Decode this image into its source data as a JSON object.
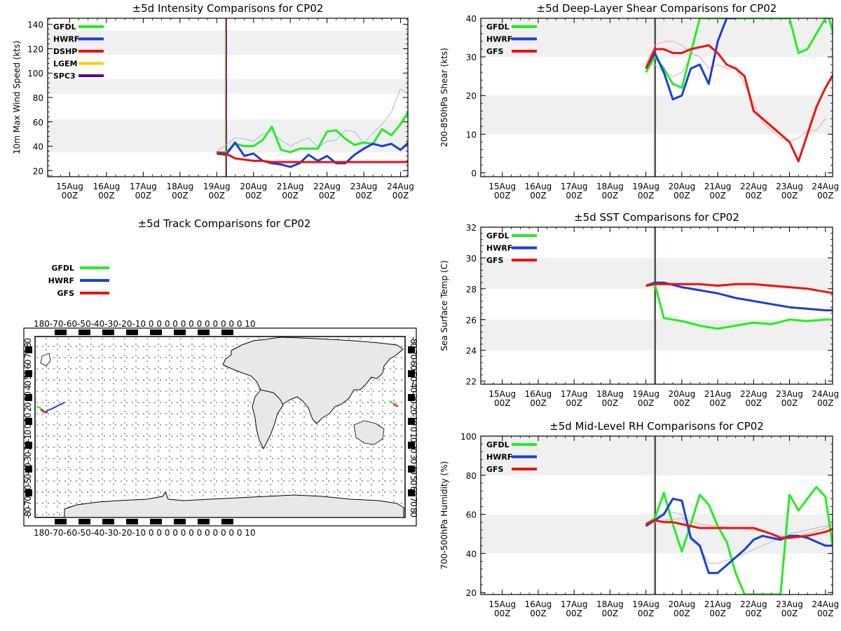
{
  "chart_data": [
    {
      "id": "intensity",
      "type": "line",
      "title": "±5d Intensity Comparisons for CP02",
      "ylabel": "10m Max Wind Speed (kts)",
      "xlabel": "",
      "x_tick_labels": [
        [
          "15Aug",
          "00Z"
        ],
        [
          "16Aug",
          "00Z"
        ],
        [
          "17Aug",
          "00Z"
        ],
        [
          "18Aug",
          "00Z"
        ],
        [
          "19Aug",
          "00Z"
        ],
        [
          "20Aug",
          "00Z"
        ],
        [
          "21Aug",
          "00Z"
        ],
        [
          "22Aug",
          "00Z"
        ],
        [
          "23Aug",
          "00Z"
        ],
        [
          "24Aug",
          "00Z"
        ]
      ],
      "xlim": [
        -4.6,
        5.2
      ],
      "ylim": [
        15,
        145
      ],
      "y_ticks": [
        20,
        40,
        60,
        80,
        100,
        120,
        140
      ],
      "bands": [
        [
          35,
          62
        ],
        [
          83,
          95
        ],
        [
          115,
          135
        ]
      ],
      "vline": 0.25,
      "legend": [
        "GFDL",
        "HWRF",
        "DSHP",
        "LGEM",
        "SPC3"
      ],
      "colors": {
        "GFDL": "#22ee22",
        "HWRF": "#1a3ed8",
        "DSHP": "#ee1111",
        "LGEM": "#ffcc00",
        "SPC3": "#660066",
        "faint": "#aab4ee"
      },
      "series": [
        {
          "name": "GFDL",
          "x": [
            0.0,
            0.25,
            0.5,
            0.75,
            1.0,
            1.25,
            1.5,
            1.75,
            2.0,
            2.25,
            2.5,
            2.75,
            3.0,
            3.25,
            3.5,
            3.75,
            4.0,
            4.25,
            4.5,
            4.75,
            5.0,
            5.25
          ],
          "values": [
            35,
            35,
            42,
            40,
            40,
            45,
            56,
            37,
            35,
            38,
            38,
            38,
            52,
            53,
            46,
            41,
            43,
            42,
            54,
            49,
            58,
            70
          ]
        },
        {
          "name": "HWRF",
          "x": [
            0.0,
            0.25,
            0.5,
            0.75,
            1.0,
            1.25,
            1.5,
            1.75,
            2.0,
            2.25,
            2.5,
            2.75,
            3.0,
            3.25,
            3.5,
            3.75,
            4.0,
            4.25,
            4.5,
            4.75,
            5.0,
            5.25
          ],
          "values": [
            34,
            33,
            43,
            32,
            34,
            28,
            26,
            25,
            23,
            26,
            33,
            28,
            32,
            26,
            26,
            33,
            38,
            42,
            40,
            42,
            37,
            44
          ]
        },
        {
          "name": "DSHP",
          "x": [
            0.0,
            0.25,
            0.5,
            0.75,
            1.0,
            1.25,
            1.5,
            1.75,
            2.0,
            2.5,
            3.0,
            3.5,
            4.0,
            4.5,
            5.0,
            5.25
          ],
          "values": [
            35,
            34,
            30,
            29,
            28,
            28,
            27,
            27,
            27,
            27,
            27,
            27,
            27,
            27,
            27,
            27
          ]
        },
        {
          "name": "faint",
          "x": [
            0.0,
            0.25,
            0.5,
            0.75,
            1.0,
            1.25,
            1.5,
            1.75,
            2.0,
            2.25,
            2.5,
            2.75,
            3.0,
            3.25,
            3.5,
            3.75,
            4.0,
            4.25,
            4.5,
            4.75,
            5.0,
            5.25
          ],
          "values": [
            36,
            41,
            47,
            46,
            44,
            50,
            52,
            45,
            40,
            44,
            47,
            39,
            44,
            45,
            53,
            52,
            42,
            51,
            58,
            68,
            87,
            82
          ]
        }
      ]
    },
    {
      "id": "shear",
      "type": "line",
      "title": "±5d Deep-Layer Shear Comparisons for CP02",
      "ylabel": "200-850hPa Shear (kts)",
      "xlabel": "",
      "x_tick_labels": [
        [
          "15Aug",
          "00Z"
        ],
        [
          "16Aug",
          "00Z"
        ],
        [
          "17Aug",
          "00Z"
        ],
        [
          "18Aug",
          "00Z"
        ],
        [
          "19Aug",
          "00Z"
        ],
        [
          "20Aug",
          "00Z"
        ],
        [
          "21Aug",
          "00Z"
        ],
        [
          "22Aug",
          "00Z"
        ],
        [
          "23Aug",
          "00Z"
        ],
        [
          "24Aug",
          "00Z"
        ]
      ],
      "xlim": [
        -4.6,
        5.2
      ],
      "ylim": [
        -1,
        40
      ],
      "y_ticks": [
        0,
        10,
        20,
        30,
        40
      ],
      "bands": [
        [
          10,
          20
        ],
        [
          30,
          40
        ]
      ],
      "vline": 0.25,
      "legend": [
        "GFDL",
        "HWRF",
        "GFS"
      ],
      "colors": {
        "GFDL": "#22ee22",
        "HWRF": "#1a3ed8",
        "GFS": "#ee1111",
        "faint": "#f0a0a0",
        "faint2": "#aab4ee"
      },
      "series": [
        {
          "name": "GFDL",
          "x": [
            0.0,
            0.25,
            0.5,
            0.75,
            1.0,
            1.25,
            1.5,
            4.0,
            4.25,
            4.5,
            4.75,
            5.0,
            5.1,
            5.25
          ],
          "values": [
            26,
            30,
            27,
            23,
            22,
            31,
            40,
            40,
            31,
            32,
            36,
            40,
            40,
            35
          ]
        },
        {
          "name": "HWRF",
          "x": [
            0.0,
            0.25,
            0.5,
            0.75,
            1.0,
            1.25,
            1.5,
            1.75,
            2.0,
            2.25,
            2.5
          ],
          "values": [
            27,
            31,
            26,
            19,
            20,
            27,
            28,
            23,
            34,
            40,
            40
          ]
        },
        {
          "name": "GFS",
          "x": [
            0.0,
            0.25,
            0.5,
            0.75,
            1.0,
            1.25,
            1.5,
            1.75,
            2.0,
            2.25,
            2.5,
            2.75,
            3.0,
            3.25,
            3.5,
            3.75,
            4.0,
            4.25,
            4.5,
            4.75,
            5.0,
            5.25
          ],
          "values": [
            27,
            32,
            32,
            31,
            31,
            32,
            32.5,
            33,
            31,
            28,
            27,
            25,
            16,
            14,
            12,
            10,
            8,
            3,
            10,
            17,
            22,
            26
          ]
        },
        {
          "name": "faint",
          "x": [
            0.0,
            0.25,
            0.5,
            0.75,
            1.0,
            1.25,
            1.5,
            1.75,
            2.0,
            2.25,
            2.5,
            2.75,
            3.0,
            3.25,
            3.5,
            3.75,
            4.0,
            4.25,
            4.5,
            4.75,
            5.0
          ],
          "values": [
            28,
            33,
            34,
            34,
            33,
            31,
            30,
            27,
            28,
            27,
            27,
            23,
            18,
            13,
            11,
            9,
            8,
            9,
            11,
            11,
            14
          ]
        },
        {
          "name": "faint2",
          "x": [
            0.0,
            0.25,
            0.5,
            0.75,
            1.0,
            1.25,
            1.5,
            1.75
          ],
          "values": [
            28,
            28,
            26,
            25,
            26,
            30,
            40,
            40
          ]
        }
      ]
    },
    {
      "id": "sst",
      "type": "line",
      "title": "±5d SST Comparisons for CP02",
      "ylabel": "Sea Surface Temp (C)",
      "xlabel": "",
      "x_tick_labels": [
        [
          "15Aug",
          "00Z"
        ],
        [
          "16Aug",
          "00Z"
        ],
        [
          "17Aug",
          "00Z"
        ],
        [
          "18Aug",
          "00Z"
        ],
        [
          "19Aug",
          "00Z"
        ],
        [
          "20Aug",
          "00Z"
        ],
        [
          "21Aug",
          "00Z"
        ],
        [
          "22Aug",
          "00Z"
        ],
        [
          "23Aug",
          "00Z"
        ],
        [
          "24Aug",
          "00Z"
        ]
      ],
      "xlim": [
        -4.6,
        5.2
      ],
      "ylim": [
        21.8,
        32
      ],
      "y_ticks": [
        22,
        24,
        26,
        28,
        30,
        32
      ],
      "bands": [
        [
          24,
          26
        ],
        [
          28,
          30
        ]
      ],
      "vline": 0.25,
      "legend": [
        "GFDL",
        "HWRF",
        "GFS"
      ],
      "colors": {
        "GFDL": "#22ee22",
        "HWRF": "#1a3ed8",
        "GFS": "#ee1111"
      },
      "series": [
        {
          "name": "GFDL",
          "x": [
            0.0,
            0.25,
            0.5,
            1.0,
            1.5,
            2.0,
            2.5,
            3.0,
            3.5,
            4.0,
            4.5,
            5.0,
            5.25
          ],
          "values": [
            28.2,
            28.3,
            26.1,
            25.9,
            25.6,
            25.4,
            25.6,
            25.8,
            25.7,
            26.0,
            25.9,
            26.0,
            26.0
          ]
        },
        {
          "name": "HWRF",
          "x": [
            0.0,
            0.25,
            0.5,
            1.0,
            1.5,
            2.0,
            2.5,
            3.0,
            3.5,
            4.0,
            4.5,
            5.0,
            5.25
          ],
          "values": [
            28.2,
            28.4,
            28.4,
            28.1,
            27.9,
            27.7,
            27.4,
            27.2,
            27.0,
            26.8,
            26.7,
            26.6,
            26.6
          ]
        },
        {
          "name": "GFS",
          "x": [
            0.0,
            0.25,
            0.5,
            1.0,
            1.5,
            2.0,
            2.5,
            3.0,
            3.5,
            4.0,
            4.5,
            5.0,
            5.25
          ],
          "values": [
            28.2,
            28.3,
            28.3,
            28.3,
            28.3,
            28.2,
            28.3,
            28.3,
            28.2,
            28.1,
            28.0,
            27.8,
            27.7
          ]
        }
      ]
    },
    {
      "id": "rh",
      "type": "line",
      "title": "±5d Mid-Level RH Comparisons for CP02",
      "ylabel": "700-500hPa Humidity (%)",
      "xlabel": "",
      "x_tick_labels": [
        [
          "15Aug",
          "00Z"
        ],
        [
          "16Aug",
          "00Z"
        ],
        [
          "17Aug",
          "00Z"
        ],
        [
          "18Aug",
          "00Z"
        ],
        [
          "19Aug",
          "00Z"
        ],
        [
          "20Aug",
          "00Z"
        ],
        [
          "21Aug",
          "00Z"
        ],
        [
          "22Aug",
          "00Z"
        ],
        [
          "23Aug",
          "00Z"
        ],
        [
          "24Aug",
          "00Z"
        ]
      ],
      "xlim": [
        -4.6,
        5.2
      ],
      "ylim": [
        19,
        100
      ],
      "y_ticks": [
        20,
        40,
        60,
        80,
        100
      ],
      "bands": [
        [
          40,
          60
        ],
        [
          80,
          100
        ]
      ],
      "vline": 0.25,
      "legend": [
        "GFDL",
        "HWRF",
        "GFS"
      ],
      "colors": {
        "GFDL": "#22ee22",
        "HWRF": "#1a3ed8",
        "GFS": "#ee1111",
        "faint": "#aab4ee",
        "faint2": "#f0a0a0"
      },
      "series": [
        {
          "name": "GFDL",
          "x": [
            0.0,
            0.25,
            0.5,
            0.75,
            1.0,
            1.25,
            1.5,
            1.75,
            2.0,
            2.25,
            2.5,
            2.75,
            3.0,
            3.2,
            3.75,
            4.0,
            4.25,
            4.5,
            4.75,
            5.0,
            5.25
          ],
          "values": [
            55,
            58,
            71,
            55,
            41,
            55,
            70,
            65,
            54,
            46,
            30,
            19,
            19,
            19,
            19,
            70,
            62,
            68,
            74,
            69,
            38
          ]
        },
        {
          "name": "HWRF",
          "x": [
            0.0,
            0.25,
            0.5,
            0.75,
            1.0,
            1.25,
            1.5,
            1.75,
            2.0,
            2.25,
            2.5,
            2.75,
            3.0,
            3.25,
            3.5,
            3.75,
            4.0,
            4.25,
            4.5,
            4.75,
            5.0,
            5.25
          ],
          "values": [
            54,
            57,
            60,
            68,
            67,
            48,
            44,
            30,
            30,
            34,
            38,
            42,
            47,
            49,
            48,
            47,
            49,
            49,
            48,
            46,
            44,
            44
          ]
        },
        {
          "name": "GFS",
          "x": [
            0.0,
            0.25,
            0.5,
            0.75,
            1.0,
            1.25,
            1.5,
            1.75,
            2.0,
            2.5,
            3.0,
            3.5,
            3.75,
            4.0,
            4.5,
            5.0,
            5.25
          ],
          "values": [
            55,
            57,
            56,
            56,
            55,
            54,
            53,
            53,
            53,
            53,
            53,
            50,
            48,
            48,
            49,
            51,
            53
          ]
        },
        {
          "name": "faint",
          "x": [
            0.0,
            0.25,
            0.5,
            0.75,
            1.0,
            1.25,
            1.5,
            1.75,
            2.0,
            2.5,
            3.0,
            3.5,
            3.75,
            4.0,
            4.5,
            5.0,
            5.25
          ],
          "values": [
            54,
            58,
            61,
            61,
            60,
            47,
            43,
            35,
            35,
            38,
            42,
            46,
            48,
            50,
            52,
            54,
            55
          ]
        },
        {
          "name": "faint2",
          "x": [
            0.0,
            0.5,
            1.0,
            1.5,
            2.0,
            2.5,
            3.0,
            3.5,
            4.0,
            4.5,
            5.0,
            5.25
          ],
          "values": [
            55,
            57,
            58,
            55,
            54,
            53,
            52,
            50,
            48,
            50,
            53,
            55
          ]
        }
      ]
    }
  ],
  "track": {
    "title": "±5d Track Comparisons for CP02",
    "legend": [
      "GFDL",
      "HWRF",
      "GFS"
    ],
    "colors": {
      "GFDL": "#22ee22",
      "HWRF": "#1a3ed8",
      "GFS": "#ee1111"
    },
    "top_axis_label": "180-70-60-50-40-30-20-10 0 0 0 0 0 0 0 0 0 0 0 0 10",
    "bottom_axis_label": "180-70-60-50-40-30-20-10 0 0 0 0 0 0 0 0 0 0 0 0 10",
    "left_axis_label": "-80-70-60-50-40-30-20-10 0 10 20 30 40 50 60 70 80",
    "right_axis_label": "-80-70-60-50-40-30-20-10 0 10 20 30 40 50 60 70 80"
  }
}
